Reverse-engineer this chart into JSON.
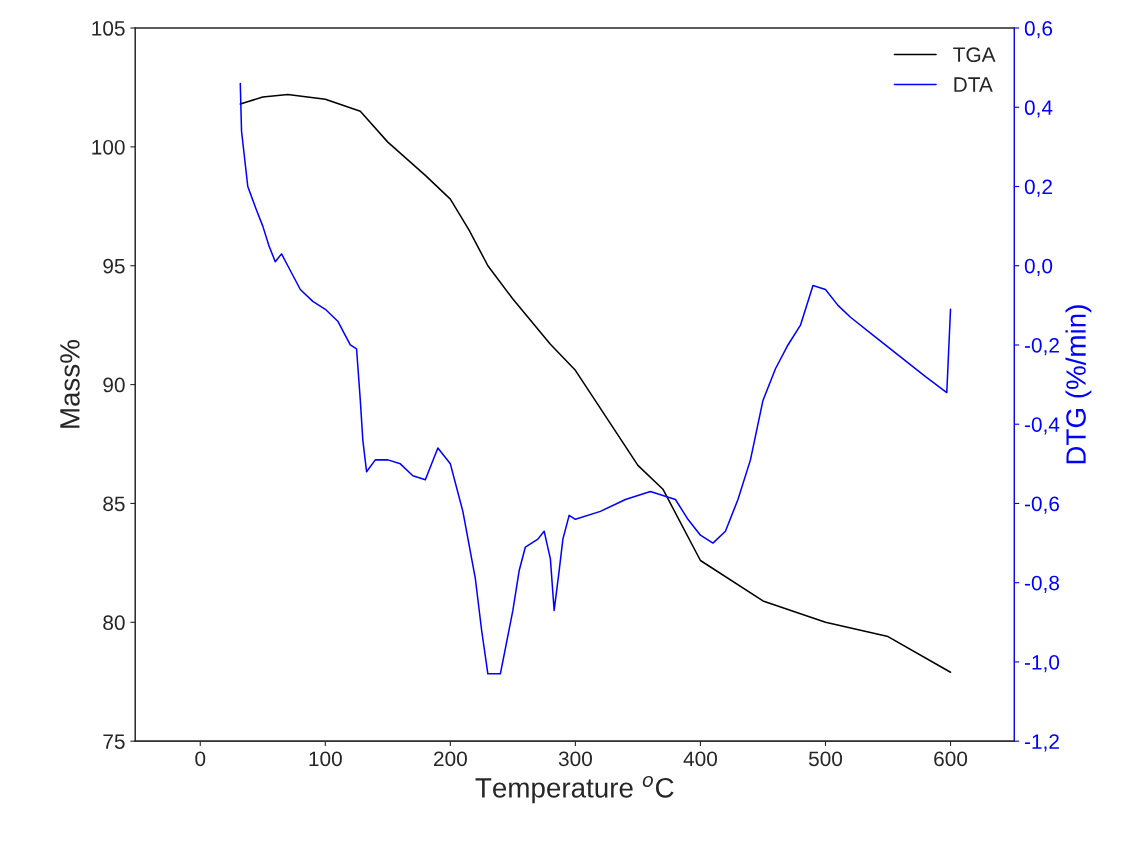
{
  "chart_data": {
    "type": "line",
    "xlabel": "Temperature $^{o}$C",
    "ylabel": "Mass%",
    "y2label": "DTG (%/min)",
    "xlim": [
      -52,
      651
    ],
    "xticks": [
      0,
      100,
      200,
      300,
      400,
      500,
      600
    ],
    "ylim": [
      75,
      105
    ],
    "yticks": [
      75,
      80,
      85,
      90,
      95,
      100,
      105
    ],
    "y2lim": [
      -1.2,
      0.6
    ],
    "y2ticks": [
      {
        "value": -1.2,
        "label": "-1,2"
      },
      {
        "value": -1.0,
        "label": "-1,0"
      },
      {
        "value": -0.8,
        "label": "-0,8"
      },
      {
        "value": -0.6,
        "label": "-0,6"
      },
      {
        "value": -0.4,
        "label": "-0,4"
      },
      {
        "value": -0.2,
        "label": "-0,2"
      },
      {
        "value": 0.0,
        "label": "0,0"
      },
      {
        "value": 0.2,
        "label": "0,2"
      },
      {
        "value": 0.4,
        "label": "0,4"
      },
      {
        "value": 0.6,
        "label": "0,6"
      }
    ],
    "legend": "top right",
    "grid": false,
    "series": [
      {
        "name": "TGA",
        "color": "#000000",
        "x": [
          32,
          50,
          70,
          100,
          128,
          150,
          180,
          200,
          215,
          230,
          250,
          280,
          300,
          350,
          370,
          400,
          450,
          500,
          550,
          600
        ],
        "values": [
          101.8,
          102.1,
          102.2,
          102.0,
          101.5,
          100.2,
          98.8,
          97.8,
          96.5,
          95.0,
          93.6,
          91.7,
          90.6,
          86.6,
          85.6,
          82.6,
          80.9,
          80.0,
          79.4,
          77.9
        ]
      },
      {
        "name": "DTA",
        "color": "#0000ff",
        "axis": "y2",
        "x": [
          32,
          33,
          38,
          45,
          50,
          55,
          60,
          65,
          70,
          80,
          90,
          100,
          110,
          115,
          120,
          125,
          128,
          130,
          133,
          140,
          150,
          160,
          170,
          180,
          190,
          200,
          210,
          220,
          225,
          230,
          240,
          245,
          250,
          255,
          260,
          270,
          275,
          280,
          283,
          287,
          290,
          295,
          300,
          320,
          340,
          360,
          380,
          390,
          400,
          410,
          420,
          430,
          440,
          450,
          460,
          470,
          480,
          490,
          500,
          510,
          520,
          540,
          560,
          580,
          597,
          600
        ],
        "values": [
          0.46,
          0.34,
          0.2,
          0.14,
          0.1,
          0.05,
          0.01,
          0.03,
          0.0,
          -0.06,
          -0.09,
          -0.11,
          -0.14,
          -0.17,
          -0.2,
          -0.21,
          -0.34,
          -0.44,
          -0.52,
          -0.49,
          -0.49,
          -0.5,
          -0.53,
          -0.54,
          -0.46,
          -0.5,
          -0.62,
          -0.79,
          -0.92,
          -1.03,
          -1.03,
          -0.95,
          -0.87,
          -0.77,
          -0.71,
          -0.69,
          -0.67,
          -0.74,
          -0.87,
          -0.77,
          -0.69,
          -0.63,
          -0.64,
          -0.62,
          -0.59,
          -0.57,
          -0.59,
          -0.64,
          -0.68,
          -0.7,
          -0.67,
          -0.59,
          -0.49,
          -0.34,
          -0.26,
          -0.2,
          -0.15,
          -0.05,
          -0.06,
          -0.1,
          -0.13,
          -0.18,
          -0.23,
          -0.28,
          -0.32,
          -0.11
        ]
      }
    ]
  }
}
